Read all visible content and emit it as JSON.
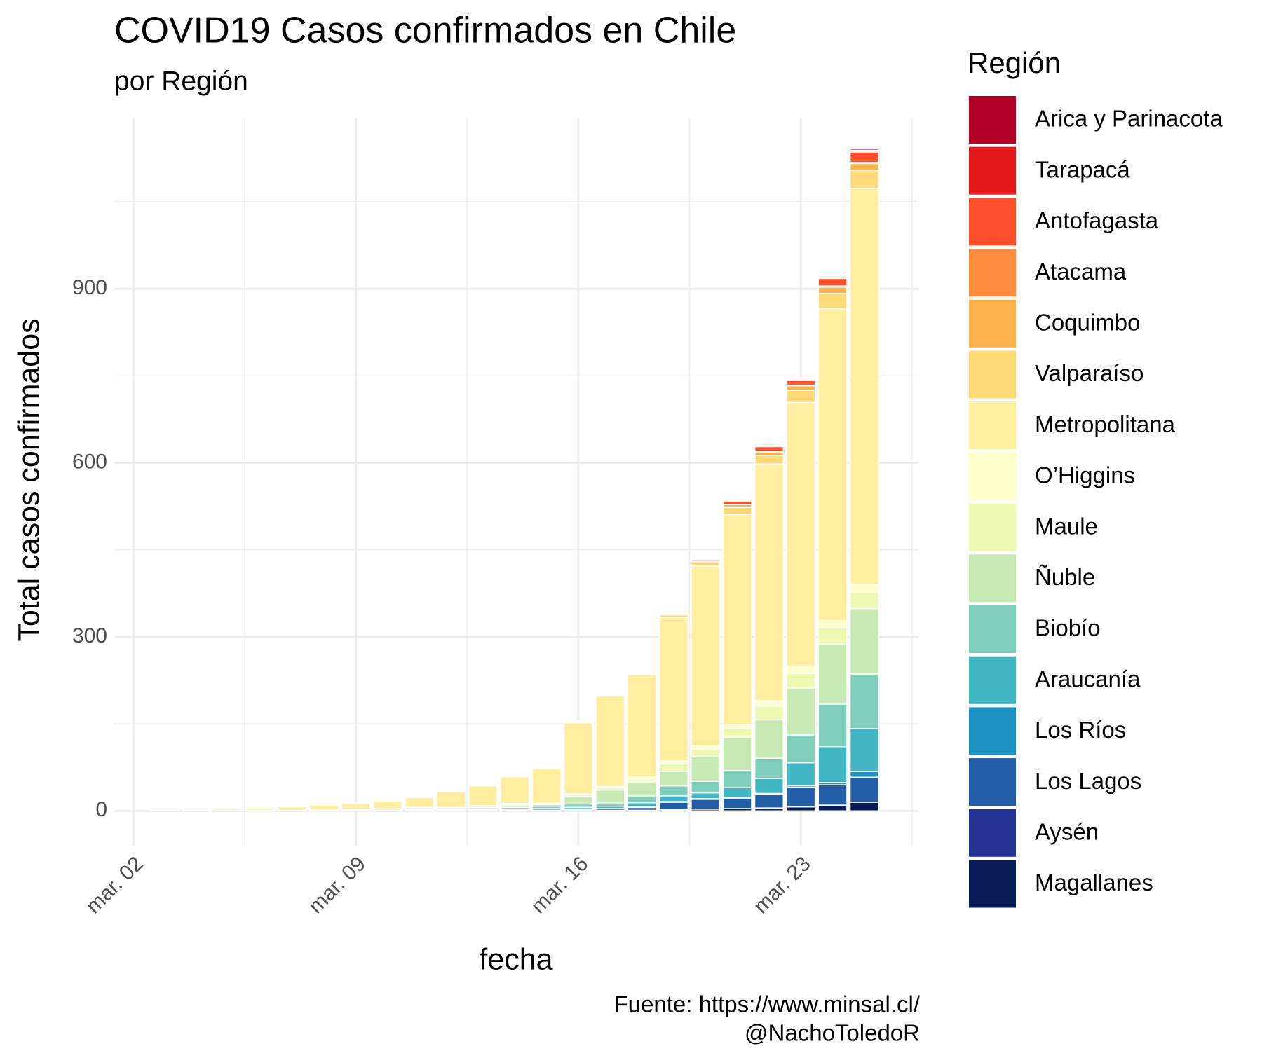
{
  "chart_data": {
    "type": "stacked_bar",
    "title": "COVID19 Casos confirmados en Chile",
    "subtitle": "por Región",
    "x_label": "fecha",
    "y_label": "Total casos confirmados",
    "legend_title": "Región",
    "legend_position": "right",
    "caption": [
      "Fuente: https://www.minsal.cl/",
      "@NachoToledoR"
    ],
    "grid": true,
    "x": [
      3,
      4,
      5,
      6,
      7,
      8,
      9,
      10,
      11,
      12,
      13,
      14,
      15,
      16,
      17,
      18,
      19,
      20,
      21,
      22,
      23,
      24,
      25
    ],
    "xlim": [
      1.4,
      26.7
    ],
    "xticks": [
      {
        "value": 2,
        "label": "mar. 02"
      },
      {
        "value": 9,
        "label": "mar. 09"
      },
      {
        "value": 16,
        "label": "mar. 16"
      },
      {
        "value": 23,
        "label": "mar. 23"
      }
    ],
    "ylim": [
      -60,
      1195
    ],
    "yticks": [
      0,
      300,
      600,
      900
    ],
    "series": [
      {
        "name": "Arica y Parinacota",
        "color": "#b00026",
        "values": [
          0,
          0,
          0,
          0,
          0,
          0,
          0,
          0,
          0,
          0,
          0,
          1,
          1,
          1,
          1,
          1,
          1,
          1,
          2,
          2,
          2,
          2,
          3
        ]
      },
      {
        "name": "Tarapacá",
        "color": "#e31a1c",
        "values": [
          0,
          0,
          0,
          0,
          0,
          0,
          0,
          0,
          0,
          0,
          0,
          0,
          0,
          0,
          0,
          0,
          0,
          0,
          1,
          2,
          2,
          2,
          3
        ]
      },
      {
        "name": "Antofagasta",
        "color": "#fc4e2a",
        "values": [
          0,
          0,
          0,
          0,
          0,
          0,
          0,
          0,
          0,
          0,
          0,
          0,
          0,
          1,
          1,
          1,
          2,
          3,
          6,
          8,
          8,
          13,
          18
        ]
      },
      {
        "name": "Atacama",
        "color": "#fd8d3c",
        "values": [
          0,
          0,
          0,
          0,
          0,
          0,
          0,
          0,
          0,
          0,
          0,
          0,
          0,
          0,
          0,
          0,
          0,
          0,
          0,
          1,
          1,
          2,
          2
        ]
      },
      {
        "name": "Coquimbo",
        "color": "#feb24c",
        "values": [
          0,
          0,
          0,
          0,
          0,
          0,
          0,
          0,
          0,
          0,
          0,
          0,
          0,
          0,
          0,
          0,
          1,
          2,
          5,
          6,
          8,
          11,
          12
        ]
      },
      {
        "name": "Valparaíso",
        "color": "#fed976",
        "values": [
          0,
          0,
          0,
          0,
          0,
          0,
          0,
          0,
          0,
          0,
          0,
          1,
          1,
          1,
          1,
          1,
          5,
          6,
          12,
          15,
          21,
          26,
          31
        ]
      },
      {
        "name": "Metropolitana",
        "color": "#ffeda0",
        "values": [
          0,
          2,
          3,
          4,
          6,
          8,
          10,
          13,
          17,
          27,
          34,
          46,
          59,
          123,
          156,
          177,
          247,
          309,
          362,
          408,
          455,
          538,
          682
        ]
      },
      {
        "name": "O’Higgins",
        "color": "#ffffcc",
        "values": [
          0,
          0,
          0,
          0,
          0,
          0,
          0,
          0,
          0,
          0,
          0,
          0,
          0,
          1,
          2,
          3,
          5,
          6,
          7,
          9,
          12,
          12,
          14
        ]
      },
      {
        "name": "Maule",
        "color": "#edf8b1",
        "values": [
          1,
          1,
          1,
          1,
          1,
          2,
          2,
          3,
          3,
          3,
          3,
          3,
          3,
          3,
          4,
          5,
          13,
          13,
          15,
          24,
          25,
          28,
          28
        ]
      },
      {
        "name": "Ñuble",
        "color": "#c7e9b4",
        "values": [
          0,
          0,
          0,
          0,
          0,
          0,
          1,
          1,
          2,
          2,
          3,
          4,
          3,
          13,
          22,
          24,
          25,
          43,
          57,
          66,
          81,
          104,
          113
        ]
      },
      {
        "name": "Biobío",
        "color": "#7fcdbb",
        "values": [
          0,
          0,
          0,
          0,
          0,
          0,
          0,
          0,
          1,
          1,
          2,
          3,
          4,
          6,
          6,
          12,
          17,
          20,
          30,
          35,
          48,
          73,
          94
        ]
      },
      {
        "name": "Araucanía",
        "color": "#41b6c4",
        "values": [
          0,
          0,
          0,
          0,
          0,
          0,
          0,
          0,
          0,
          0,
          1,
          2,
          3,
          4,
          4,
          7,
          10,
          10,
          17,
          26,
          39,
          62,
          74
        ]
      },
      {
        "name": "Los Ríos",
        "color": "#1d91c0",
        "values": [
          0,
          0,
          0,
          0,
          0,
          0,
          0,
          0,
          0,
          0,
          0,
          0,
          0,
          0,
          0,
          1,
          1,
          1,
          1,
          2,
          3,
          4,
          10
        ]
      },
      {
        "name": "Los Lagos",
        "color": "#225ea8",
        "values": [
          0,
          0,
          0,
          0,
          0,
          0,
          0,
          0,
          0,
          0,
          0,
          1,
          1,
          2,
          3,
          5,
          13,
          17,
          18,
          23,
          34,
          35,
          43
        ]
      },
      {
        "name": "Aysén",
        "color": "#253494",
        "values": [
          0,
          0,
          0,
          0,
          0,
          0,
          0,
          0,
          0,
          0,
          0,
          0,
          0,
          0,
          0,
          0,
          0,
          0,
          0,
          0,
          0,
          0,
          0
        ]
      },
      {
        "name": "Magallanes",
        "color": "#081d58",
        "values": [
          0,
          0,
          0,
          0,
          0,
          0,
          0,
          0,
          0,
          0,
          0,
          0,
          0,
          0,
          1,
          1,
          2,
          3,
          4,
          5,
          7,
          10,
          15
        ]
      }
    ]
  }
}
